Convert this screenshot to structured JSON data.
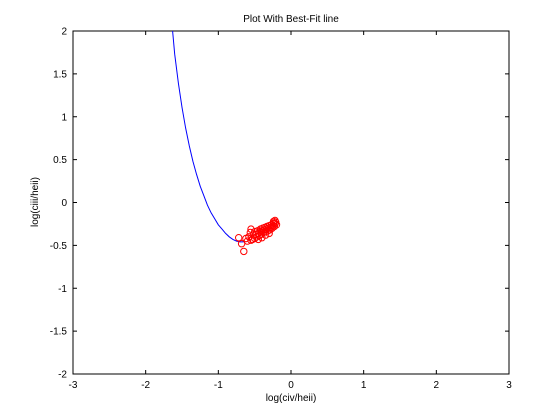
{
  "chart_data": {
    "type": "scatter",
    "title": "Plot With Best-Fit line",
    "xlabel": "log(civ/heii)",
    "ylabel": "log(ciii/heii)",
    "xlim": [
      -3,
      3
    ],
    "ylim": [
      -2,
      2
    ],
    "xticks": [
      -3,
      -2,
      -1,
      0,
      1,
      2,
      3
    ],
    "yticks": [
      -2,
      -1.5,
      -1,
      -0.5,
      0,
      0.5,
      1,
      1.5,
      2
    ],
    "xtick_labels": [
      "-3",
      "-2",
      "-1",
      "0",
      "1",
      "2",
      "3"
    ],
    "ytick_labels": [
      "-2",
      "-1.5",
      "-1",
      "-0.5",
      "0",
      "0.5",
      "1",
      "1.5",
      "2"
    ],
    "grid": false,
    "colors": {
      "fit_line": "#0000ff",
      "points": "#ff0000",
      "axes": "#000000"
    },
    "series": [
      {
        "type": "scatter",
        "marker": "open-circle",
        "points": [
          [
            -0.72,
            -0.41
          ],
          [
            -0.68,
            -0.48
          ],
          [
            -0.65,
            -0.57
          ],
          [
            -0.6,
            -0.45
          ],
          [
            -0.58,
            -0.4
          ],
          [
            -0.56,
            -0.35
          ],
          [
            -0.55,
            -0.31
          ],
          [
            -0.53,
            -0.43
          ],
          [
            -0.52,
            -0.38
          ],
          [
            -0.5,
            -0.42
          ],
          [
            -0.5,
            -0.34
          ],
          [
            -0.48,
            -0.37
          ],
          [
            -0.47,
            -0.4
          ],
          [
            -0.46,
            -0.33
          ],
          [
            -0.45,
            -0.36
          ],
          [
            -0.44,
            -0.39
          ],
          [
            -0.43,
            -0.34
          ],
          [
            -0.42,
            -0.31
          ],
          [
            -0.41,
            -0.37
          ],
          [
            -0.4,
            -0.33
          ],
          [
            -0.39,
            -0.3
          ],
          [
            -0.38,
            -0.35
          ],
          [
            -0.37,
            -0.32
          ],
          [
            -0.36,
            -0.29
          ],
          [
            -0.35,
            -0.34
          ],
          [
            -0.34,
            -0.31
          ],
          [
            -0.33,
            -0.28
          ],
          [
            -0.32,
            -0.33
          ],
          [
            -0.31,
            -0.3
          ],
          [
            -0.3,
            -0.27
          ],
          [
            -0.29,
            -0.32
          ],
          [
            -0.28,
            -0.29
          ],
          [
            -0.27,
            -0.26
          ],
          [
            -0.26,
            -0.3
          ],
          [
            -0.25,
            -0.27
          ],
          [
            -0.24,
            -0.24
          ],
          [
            -0.23,
            -0.28
          ],
          [
            -0.22,
            -0.25
          ],
          [
            -0.21,
            -0.23
          ],
          [
            -0.2,
            -0.26
          ],
          [
            -0.22,
            -0.21
          ],
          [
            -0.24,
            -0.22
          ],
          [
            -0.35,
            -0.38
          ],
          [
            -0.4,
            -0.41
          ],
          [
            -0.45,
            -0.43
          ],
          [
            -0.3,
            -0.36
          ],
          [
            -0.55,
            -0.44
          ],
          [
            -0.62,
            -0.42
          ]
        ]
      },
      {
        "type": "line",
        "curve": "best-fit",
        "points": [
          [
            -1.63,
            2.0
          ],
          [
            -1.6,
            1.73
          ],
          [
            -1.55,
            1.39
          ],
          [
            -1.5,
            1.11
          ],
          [
            -1.45,
            0.87
          ],
          [
            -1.4,
            0.66
          ],
          [
            -1.35,
            0.48
          ],
          [
            -1.3,
            0.33
          ],
          [
            -1.25,
            0.19
          ],
          [
            -1.2,
            0.08
          ],
          [
            -1.15,
            -0.03
          ],
          [
            -1.1,
            -0.12
          ],
          [
            -1.05,
            -0.19
          ],
          [
            -1.0,
            -0.26
          ],
          [
            -0.95,
            -0.31
          ],
          [
            -0.9,
            -0.36
          ],
          [
            -0.85,
            -0.4
          ],
          [
            -0.8,
            -0.43
          ],
          [
            -0.75,
            -0.45
          ],
          [
            -0.7,
            -0.46
          ],
          [
            -0.65,
            -0.46
          ]
        ]
      }
    ]
  }
}
